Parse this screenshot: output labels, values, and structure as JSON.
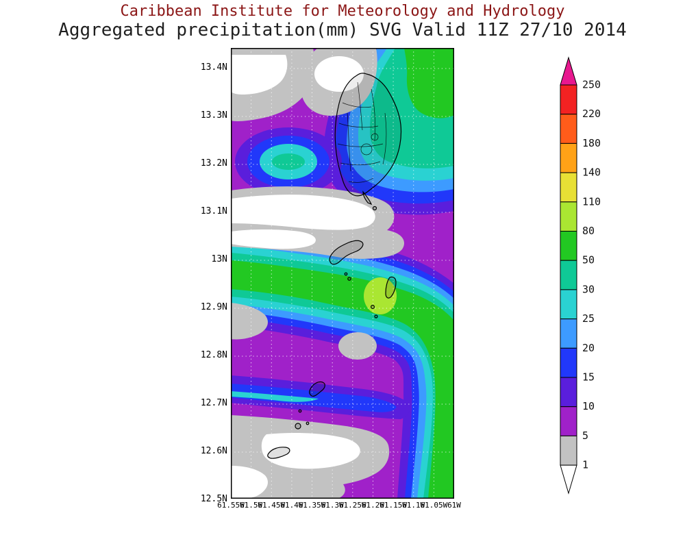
{
  "title": {
    "line1": "Caribbean Institute for Meteorology and Hydrology",
    "line2": "Aggregated precipitation(mm) SVG Valid 11Z 27/10 2014",
    "color1": "#8b1616",
    "color2": "#1f1f1f"
  },
  "palette": {
    "ink": "#000000",
    "grid": "#ffffff",
    "white": "#ffffff",
    "gray": "#c2c2c2",
    "purple": "#a021c9",
    "violet": "#5a1edc",
    "blue": "#2138fa",
    "light_blue": "#3d9bff",
    "cyan": "#2ad2d2",
    "teal": "#0fc996",
    "green": "#22c822",
    "yellow_green": "#aae632",
    "yellow": "#e8e035",
    "orange": "#ffa217",
    "orange_red": "#ff5c1a",
    "red": "#f32222",
    "pink": "#e8188f"
  },
  "legend": {
    "arrow_top_color": "pink",
    "arrow_bottom_color": "white",
    "bottom_label": "1",
    "segments": [
      {
        "label": "250",
        "color": "red"
      },
      {
        "label": "220",
        "color": "orange_red"
      },
      {
        "label": "180",
        "color": "orange"
      },
      {
        "label": "140",
        "color": "yellow"
      },
      {
        "label": "110",
        "color": "yellow_green"
      },
      {
        "label": "80",
        "color": "green"
      },
      {
        "label": "50",
        "color": "teal"
      },
      {
        "label": "30",
        "color": "cyan"
      },
      {
        "label": "25",
        "color": "light_blue"
      },
      {
        "label": "20",
        "color": "blue"
      },
      {
        "label": "15",
        "color": "violet"
      },
      {
        "label": "10",
        "color": "purple"
      },
      {
        "label": "5",
        "color": "gray"
      }
    ]
  },
  "axes": {
    "lat_labels": [
      "13.4N",
      "13.3N",
      "13.2N",
      "13.1N",
      "13N",
      "12.9N",
      "12.8N",
      "12.7N",
      "12.6N",
      "12.5N"
    ],
    "lon_labels": [
      "61.55W",
      "61.5W",
      "61.45W",
      "61.4W",
      "61.35W",
      "61.3W",
      "61.25W",
      "61.2W",
      "61.15W",
      "61.1W",
      "61.05W",
      "61W"
    ]
  },
  "chart_data": {
    "type": "heatmap",
    "title": "Aggregated precipitation(mm) SVG Valid 11Z 27/10 2014",
    "units": "mm",
    "area_label": "SVG",
    "contour_levels": [
      1,
      5,
      10,
      15,
      20,
      25,
      30,
      50,
      80,
      110,
      140,
      180,
      220,
      250
    ],
    "lat_ticks": [
      "13.4N",
      "13.3N",
      "13.2N",
      "13.1N",
      "13N",
      "12.9N",
      "12.8N",
      "12.7N",
      "12.6N",
      "12.5N"
    ],
    "lon_ticks": [
      "61.55W",
      "61.5W",
      "61.45W",
      "61.4W",
      "61.35W",
      "61.3W",
      "61.25W",
      "61.2W",
      "61.15W",
      "61.1W",
      "61.05W",
      "61W"
    ],
    "legend_position": "right"
  }
}
